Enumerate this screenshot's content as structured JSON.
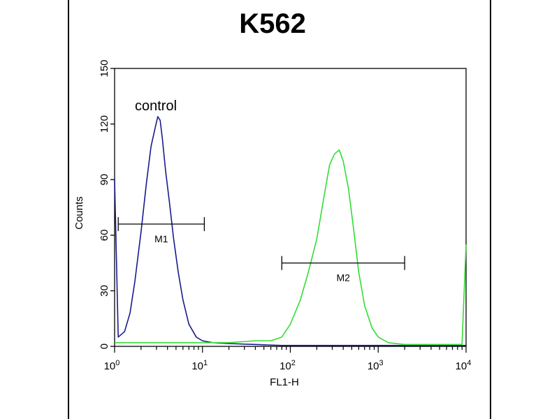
{
  "chart_data": {
    "type": "histogram",
    "title": "K562",
    "xlabel": "FL1-H",
    "ylabel": "Counts",
    "x_scale": "log",
    "xlim": [
      1,
      10000
    ],
    "ylim": [
      0,
      150
    ],
    "x_ticks": [
      {
        "base": "10",
        "exp": "0",
        "value": 1
      },
      {
        "base": "10",
        "exp": "1",
        "value": 10
      },
      {
        "base": "10",
        "exp": "2",
        "value": 100
      },
      {
        "base": "10",
        "exp": "3",
        "value": 1000
      },
      {
        "base": "10",
        "exp": "4",
        "value": 10000
      }
    ],
    "y_ticks": [
      0,
      30,
      60,
      90,
      120,
      150
    ],
    "annotation": "control",
    "series": [
      {
        "color": "#1a1a8c",
        "x": [
          1,
          1.1,
          1.3,
          1.5,
          1.7,
          2.0,
          2.3,
          2.6,
          2.9,
          3.1,
          3.3,
          3.5,
          3.8,
          4.2,
          4.7,
          5.3,
          6.0,
          7.0,
          8.5,
          10,
          13,
          20,
          40,
          80,
          200,
          1000,
          10000
        ],
        "y": [
          90,
          5,
          8,
          18,
          35,
          62,
          88,
          108,
          118,
          124,
          122,
          112,
          95,
          78,
          58,
          40,
          25,
          12,
          5,
          3,
          2,
          1.5,
          1,
          0.5,
          0.5,
          0.5,
          0.5
        ]
      },
      {
        "color": "#33dd33",
        "x": [
          1,
          2,
          5,
          10,
          20,
          40,
          60,
          80,
          100,
          130,
          160,
          200,
          240,
          280,
          320,
          360,
          400,
          460,
          520,
          600,
          700,
          850,
          1000,
          1300,
          2000,
          4000,
          9000,
          10000
        ],
        "y": [
          2,
          2,
          2,
          2,
          2,
          3,
          3,
          5,
          12,
          25,
          40,
          58,
          80,
          98,
          104,
          106,
          100,
          85,
          65,
          40,
          22,
          10,
          5,
          2,
          1,
          1,
          1,
          55
        ]
      }
    ],
    "markers": [
      {
        "label": "M1",
        "x_start": 1.1,
        "x_end": 10.5,
        "y": 66
      },
      {
        "label": "M2",
        "x_start": 80,
        "x_end": 2000,
        "y": 45
      }
    ]
  }
}
